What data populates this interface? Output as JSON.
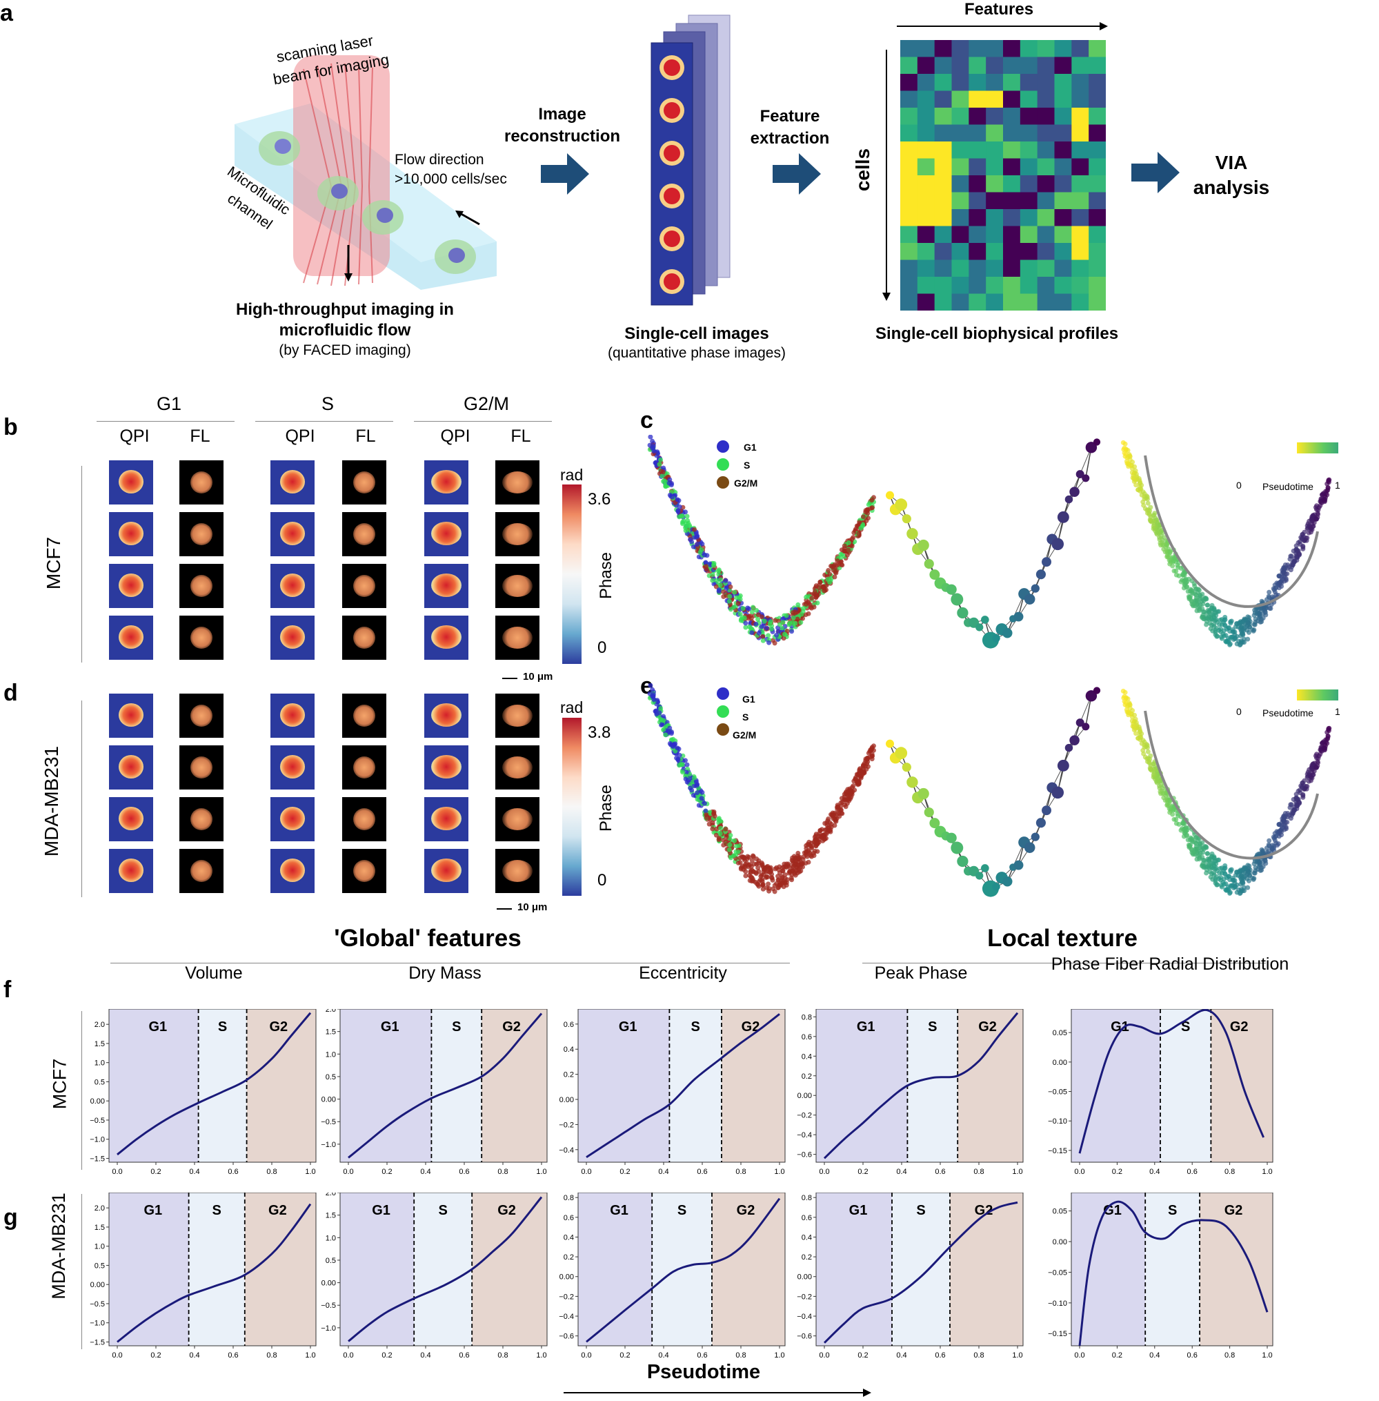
{
  "panel_a": {
    "label": "a",
    "laser_text_1": "scanning laser",
    "laser_text_2": "beam for imaging",
    "flow_text_1": "Flow direction",
    "flow_text_2": ">10,000 cells/sec",
    "channel_text_1": "Microfluidic",
    "channel_text_2": "channel",
    "caption_1": "High-throughput imaging in",
    "caption_2": "microfluidic flow",
    "caption_3": "(by FACED imaging)",
    "step1_1": "Image",
    "step1_2": "reconstruction",
    "images_caption_1": "Single-cell images",
    "images_caption_2": "(quantitative phase images)",
    "step2_1": "Feature",
    "step2_2": "extraction",
    "features_label": "Features",
    "cells_label": "cells",
    "profiles_caption": "Single-cell biophysical profiles",
    "via_1": "VIA",
    "via_2": "analysis"
  },
  "panel_b": {
    "label": "b",
    "phases": [
      "G1",
      "S",
      "G2/M"
    ],
    "qpi": "QPI",
    "fl": "FL",
    "row_label": "MCF7",
    "cbar_unit": "rad",
    "cbar_max": "3.6",
    "cbar_min": "0",
    "cbar_label": "Phase",
    "scale": "10 μm"
  },
  "panel_d": {
    "label": "d",
    "row_label": "MDA-MB231",
    "cbar_unit": "rad",
    "cbar_max": "3.8",
    "cbar_min": "0",
    "cbar_label": "Phase",
    "scale": "10 μm"
  },
  "panel_c": {
    "label": "c",
    "legend": [
      "G1",
      "S",
      "G2/M"
    ],
    "pseudo_min": "0",
    "pseudo_label": "Pseudotime",
    "pseudo_max": "1"
  },
  "panel_e": {
    "label": "e",
    "legend": [
      "G1",
      "S",
      "G2/M"
    ],
    "pseudo_min": "0",
    "pseudo_label": "Pseudotime",
    "pseudo_max": "1"
  },
  "section_global": "'Global' features",
  "section_local": "Local texture",
  "panel_f_label": "f",
  "panel_g_label": "g",
  "row_f": "MCF7",
  "row_g": "MDA-MB231",
  "xaxis_label": "Pseudotime",
  "colors": {
    "g1": "#d9d8ef",
    "s": "#eaf1f9",
    "g2": "#e6d6cf",
    "line": "#1a1a7a",
    "arrow": "#1e4d78"
  },
  "chart_data": [
    {
      "type": "line",
      "title": "Volume",
      "row": "MCF7",
      "phase_labels": [
        "G1",
        "S",
        "G2"
      ],
      "boundaries": [
        0.42,
        0.67
      ],
      "xlim": [
        0,
        1
      ],
      "ylim": [
        -1.6,
        2.4
      ],
      "yticks": [
        -1.5,
        -1.0,
        -0.5,
        0.0,
        0.5,
        1.0,
        1.5,
        2.0
      ],
      "xticks": [
        0.0,
        0.2,
        0.4,
        0.6,
        0.8,
        1.0
      ],
      "x": [
        0,
        0.1,
        0.2,
        0.3,
        0.42,
        0.55,
        0.67,
        0.8,
        0.9,
        1.0
      ],
      "y": [
        -1.4,
        -1.0,
        -0.65,
        -0.35,
        -0.05,
        0.25,
        0.55,
        1.1,
        1.7,
        2.3
      ]
    },
    {
      "type": "line",
      "title": "Dry Mass",
      "row": "MCF7",
      "phase_labels": [
        "G1",
        "S",
        "G2"
      ],
      "boundaries": [
        0.43,
        0.69
      ],
      "xlim": [
        0,
        1
      ],
      "ylim": [
        -1.4,
        2.0
      ],
      "yticks": [
        -1.0,
        -0.5,
        0.0,
        0.5,
        1.0,
        1.5,
        2.0
      ],
      "xticks": [
        0.0,
        0.2,
        0.4,
        0.6,
        0.8,
        1.0
      ],
      "x": [
        0,
        0.1,
        0.2,
        0.3,
        0.43,
        0.56,
        0.69,
        0.8,
        0.9,
        1.0
      ],
      "y": [
        -1.3,
        -0.95,
        -0.6,
        -0.3,
        0.02,
        0.25,
        0.5,
        0.9,
        1.4,
        1.9
      ]
    },
    {
      "type": "line",
      "title": "Eccentricity",
      "row": "MCF7",
      "phase_labels": [
        "G1",
        "S",
        "G2"
      ],
      "boundaries": [
        0.43,
        0.7
      ],
      "xlim": [
        0,
        1
      ],
      "ylim": [
        -0.5,
        0.72
      ],
      "yticks": [
        -0.4,
        -0.2,
        0.0,
        0.2,
        0.4,
        0.6
      ],
      "xticks": [
        0.0,
        0.2,
        0.4,
        0.6,
        0.8,
        1.0
      ],
      "x": [
        0,
        0.1,
        0.2,
        0.3,
        0.43,
        0.56,
        0.7,
        0.8,
        0.9,
        1.0
      ],
      "y": [
        -0.46,
        -0.36,
        -0.26,
        -0.16,
        -0.04,
        0.16,
        0.33,
        0.45,
        0.56,
        0.68
      ]
    },
    {
      "type": "line",
      "title": "Peak Phase",
      "row": "MCF7",
      "phase_labels": [
        "G1",
        "S",
        "G2"
      ],
      "boundaries": [
        0.43,
        0.69
      ],
      "xlim": [
        0,
        1
      ],
      "ylim": [
        -0.68,
        0.88
      ],
      "yticks": [
        -0.6,
        -0.4,
        -0.2,
        0.0,
        0.2,
        0.4,
        0.6,
        0.8
      ],
      "xticks": [
        0.0,
        0.2,
        0.4,
        0.6,
        0.8,
        1.0
      ],
      "x": [
        0,
        0.1,
        0.2,
        0.3,
        0.43,
        0.56,
        0.69,
        0.8,
        0.9,
        1.0
      ],
      "y": [
        -0.64,
        -0.45,
        -0.28,
        -0.1,
        0.1,
        0.18,
        0.2,
        0.35,
        0.6,
        0.84
      ]
    },
    {
      "type": "line",
      "title": "Phase Fiber Radial Distribution",
      "row": "MCF7",
      "phase_labels": [
        "G1",
        "S",
        "G2"
      ],
      "boundaries": [
        0.43,
        0.7
      ],
      "xlim": [
        0,
        1
      ],
      "ylim": [
        -0.17,
        0.09
      ],
      "yticks": [
        -0.15,
        -0.1,
        -0.05,
        0.0,
        0.05
      ],
      "xticks": [
        0.0,
        0.2,
        0.4,
        0.6,
        0.8,
        1.0
      ],
      "x": [
        0,
        0.08,
        0.16,
        0.24,
        0.32,
        0.43,
        0.55,
        0.68,
        0.78,
        0.88,
        0.98
      ],
      "y": [
        -0.155,
        -0.06,
        0.02,
        0.06,
        0.06,
        0.048,
        0.068,
        0.088,
        0.05,
        -0.05,
        -0.128
      ]
    },
    {
      "type": "line",
      "title": "",
      "row": "MDA-MB231",
      "phase_labels": [
        "G1",
        "S",
        "G2"
      ],
      "boundaries": [
        0.37,
        0.66
      ],
      "xlim": [
        0,
        1
      ],
      "ylim": [
        -1.6,
        2.4
      ],
      "yticks": [
        -1.5,
        -1.0,
        -0.5,
        0.0,
        0.5,
        1.0,
        1.5,
        2.0
      ],
      "xticks": [
        0.0,
        0.2,
        0.4,
        0.6,
        0.8,
        1.0
      ],
      "x": [
        0,
        0.1,
        0.2,
        0.3,
        0.37,
        0.5,
        0.66,
        0.8,
        0.9,
        1.0
      ],
      "y": [
        -1.5,
        -1.1,
        -0.75,
        -0.45,
        -0.28,
        -0.05,
        0.25,
        0.8,
        1.4,
        2.1
      ]
    },
    {
      "type": "line",
      "title": "",
      "row": "MDA-MB231",
      "phase_labels": [
        "G1",
        "S",
        "G2"
      ],
      "boundaries": [
        0.34,
        0.64
      ],
      "xlim": [
        0,
        1
      ],
      "ylim": [
        -1.4,
        2.0
      ],
      "yticks": [
        -1.0,
        -0.5,
        0.0,
        0.5,
        1.0,
        1.5,
        2.0
      ],
      "xticks": [
        0.0,
        0.2,
        0.4,
        0.6,
        0.8,
        1.0
      ],
      "x": [
        0,
        0.1,
        0.2,
        0.34,
        0.5,
        0.64,
        0.75,
        0.85,
        1.0
      ],
      "y": [
        -1.3,
        -0.95,
        -0.65,
        -0.35,
        -0.05,
        0.3,
        0.7,
        1.1,
        1.9
      ]
    },
    {
      "type": "line",
      "title": "",
      "row": "MDA-MB231",
      "phase_labels": [
        "G1",
        "S",
        "G2"
      ],
      "boundaries": [
        0.34,
        0.65
      ],
      "xlim": [
        0,
        1
      ],
      "ylim": [
        -0.7,
        0.85
      ],
      "yticks": [
        -0.6,
        -0.4,
        -0.2,
        0.0,
        0.2,
        0.4,
        0.6,
        0.8
      ],
      "xticks": [
        0.0,
        0.2,
        0.4,
        0.6,
        0.8,
        1.0
      ],
      "x": [
        0,
        0.1,
        0.2,
        0.34,
        0.45,
        0.55,
        0.65,
        0.75,
        0.85,
        1.0
      ],
      "y": [
        -0.66,
        -0.5,
        -0.34,
        -0.12,
        0.05,
        0.12,
        0.14,
        0.22,
        0.4,
        0.79
      ]
    },
    {
      "type": "line",
      "title": "",
      "row": "MDA-MB231",
      "phase_labels": [
        "G1",
        "S",
        "G2"
      ],
      "boundaries": [
        0.35,
        0.65
      ],
      "xlim": [
        0,
        1
      ],
      "ylim": [
        -0.7,
        0.85
      ],
      "yticks": [
        -0.6,
        -0.4,
        -0.2,
        0.0,
        0.2,
        0.4,
        0.6,
        0.8
      ],
      "xticks": [
        0.0,
        0.2,
        0.4,
        0.6,
        0.8,
        1.0
      ],
      "x": [
        0,
        0.1,
        0.2,
        0.35,
        0.5,
        0.65,
        0.8,
        0.9,
        1.0
      ],
      "y": [
        -0.67,
        -0.48,
        -0.32,
        -0.22,
        0.0,
        0.3,
        0.58,
        0.7,
        0.75
      ]
    },
    {
      "type": "line",
      "title": "",
      "row": "MDA-MB231",
      "phase_labels": [
        "G1",
        "S",
        "G2"
      ],
      "boundaries": [
        0.35,
        0.64
      ],
      "xlim": [
        0,
        1
      ],
      "ylim": [
        -0.17,
        0.08
      ],
      "yticks": [
        -0.15,
        -0.1,
        -0.05,
        0.0,
        0.05
      ],
      "xticks": [
        0.0,
        0.2,
        0.4,
        0.6,
        0.8,
        1.0
      ],
      "x": [
        0,
        0.05,
        0.12,
        0.2,
        0.28,
        0.35,
        0.45,
        0.55,
        0.66,
        0.78,
        0.9,
        1.0
      ],
      "y": [
        -0.17,
        -0.04,
        0.04,
        0.065,
        0.05,
        0.015,
        0.005,
        0.028,
        0.035,
        0.025,
        -0.03,
        -0.115
      ]
    }
  ]
}
